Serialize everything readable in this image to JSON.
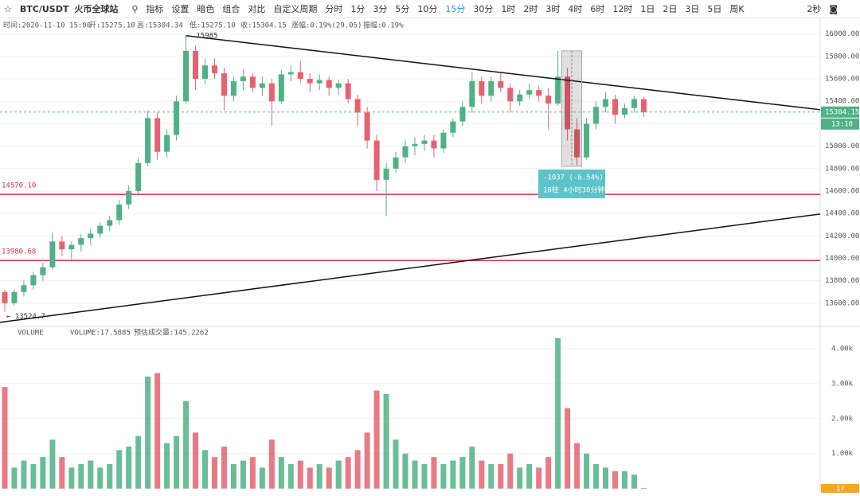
{
  "toolbar": {
    "symbol": "BTC/USDT",
    "exchange": "火币全球站",
    "tools": [
      "指标",
      "设置",
      "暗色",
      "组合",
      "对比",
      "自定义周期"
    ],
    "periods": [
      "分时",
      "1分",
      "3分",
      "5分",
      "10分",
      "15分",
      "30分",
      "1时",
      "2时",
      "3时",
      "4时",
      "6时",
      "12时",
      "1日",
      "2日",
      "3日",
      "5日",
      "周K"
    ],
    "active_period": 5,
    "refresh": "2秒"
  },
  "info": [
    "时间:2020-11-10 15:00",
    "开:15275.10",
    "高:15304.34",
    "低:15275.10",
    "收:15304.15",
    "涨幅:0.19%(29.05)",
    "振幅:0.19%"
  ],
  "chart_data": [
    {
      "type": "candlestick",
      "xlim": [
        -0.5,
        85.5
      ],
      "ylim": [
        13400,
        16140
      ],
      "yticks": [
        {
          "value": 13600,
          "label": "13600.00"
        },
        {
          "value": 13800,
          "label": "13800.00"
        },
        {
          "value": 14000,
          "label": "14000.00"
        },
        {
          "value": 14200,
          "label": "14200.00"
        },
        {
          "value": 14400,
          "label": "14400.00"
        },
        {
          "value": 14600,
          "label": "14600.00"
        },
        {
          "value": 14800,
          "label": "14800.00"
        },
        {
          "value": 15000,
          "label": "15000.00"
        },
        {
          "value": 15200,
          "label": "15200.00"
        },
        {
          "value": 15400,
          "label": "15400.00"
        },
        {
          "value": 15600,
          "label": "15600.00"
        },
        {
          "value": 15800,
          "label": "15800.00"
        },
        {
          "value": 16000,
          "label": "16000.00"
        }
      ],
      "grid": true,
      "up_color": "#4fb185",
      "down_color": "#e5626e",
      "open": [
        13700,
        13600,
        13700,
        13760,
        13850,
        13920,
        14150,
        14080,
        14120,
        14180,
        14220,
        14290,
        14340,
        14480,
        14600,
        14850,
        15250,
        14950,
        15100,
        15400,
        15850,
        15600,
        15720,
        15650,
        15450,
        15580,
        15620,
        15520,
        15560,
        15400,
        15640,
        15660,
        15600,
        15560,
        15590,
        15520,
        15560,
        15420,
        15300,
        15050,
        14700,
        14800,
        14900,
        15000,
        15020,
        15050,
        14980,
        15120,
        15220,
        15350,
        15580,
        15450,
        15580,
        15520,
        15400,
        15460,
        15500,
        15450,
        15380,
        15620,
        15150,
        14900,
        15200,
        15350,
        15420,
        15280,
        15340,
        15420
      ],
      "high": [
        13720,
        13720,
        13800,
        13880,
        13960,
        14230,
        14200,
        14150,
        14220,
        14260,
        14320,
        14380,
        14520,
        14650,
        14900,
        15320,
        15300,
        15150,
        15450,
        15985,
        15900,
        15780,
        15780,
        15700,
        15620,
        15680,
        15650,
        15620,
        15600,
        15680,
        15720,
        15760,
        15650,
        15640,
        15620,
        15590,
        15600,
        15460,
        15350,
        15100,
        14850,
        14950,
        15050,
        15080,
        15100,
        15100,
        15150,
        15250,
        15400,
        15660,
        15620,
        15620,
        15650,
        15560,
        15500,
        15560,
        15540,
        15520,
        15850,
        15700,
        15250,
        15250,
        15400,
        15480,
        15460,
        15380,
        15450,
        15440
      ],
      "low": [
        13524.7,
        13580,
        13660,
        13720,
        13800,
        13900,
        14020,
        13990,
        14060,
        14120,
        14180,
        14240,
        14300,
        14440,
        14560,
        14820,
        14880,
        14900,
        15050,
        15380,
        15500,
        15550,
        15600,
        15320,
        15400,
        15500,
        15480,
        15450,
        15180,
        15380,
        15580,
        15560,
        15480,
        15500,
        15450,
        15460,
        15380,
        15180,
        14980,
        14600,
        14380,
        14760,
        14850,
        14920,
        14960,
        14900,
        14940,
        15080,
        15180,
        15300,
        15380,
        15400,
        15480,
        15300,
        15360,
        15420,
        15400,
        15150,
        15360,
        15050,
        14830,
        14880,
        15150,
        15300,
        15200,
        15250,
        15300,
        15260
      ],
      "close": [
        13600,
        13700,
        13760,
        13850,
        13920,
        14150,
        14080,
        14120,
        14180,
        14220,
        14290,
        14340,
        14480,
        14600,
        14850,
        15250,
        14950,
        15100,
        15400,
        15850,
        15600,
        15720,
        15650,
        15450,
        15580,
        15620,
        15520,
        15560,
        15400,
        15640,
        15660,
        15600,
        15560,
        15590,
        15520,
        15560,
        15420,
        15300,
        15050,
        14700,
        14800,
        14900,
        15000,
        15020,
        15050,
        14980,
        15120,
        15220,
        15350,
        15580,
        15450,
        15580,
        15520,
        15400,
        15460,
        15500,
        15450,
        15380,
        15620,
        15150,
        14900,
        15200,
        15350,
        15420,
        15280,
        15340,
        15420,
        15304.15
      ],
      "hlines": [
        {
          "value": 14570.1,
          "label": "14570.10",
          "color": "#d4303d"
        },
        {
          "value": 13980.68,
          "label": "13980.68",
          "color": "#d4303d"
        }
      ],
      "trendlines": [
        {
          "x": [
            19,
            85.5
          ],
          "y": [
            15985,
            15325
          ]
        },
        {
          "x": [
            -0.5,
            85.5
          ],
          "y": [
            13429,
            14395
          ]
        }
      ],
      "annotations": [
        {
          "text": "← 15985",
          "x": 19,
          "y": 15985
        },
        {
          "text": "← 13524.7",
          "x": 0,
          "y": 13524.7
        }
      ],
      "measure": {
        "x": [
          58.4,
          60.5
        ],
        "y": [
          14820,
          15850
        ],
        "lines": [
          "-1037 (-6.54%)",
          "18柱 4小时30分钟"
        ]
      },
      "last_price": 15304.15,
      "countdown": "13:10"
    },
    {
      "type": "bar",
      "xlim": [
        -0.5,
        85.5
      ],
      "ylim": [
        -120,
        4610
      ],
      "legend": [
        "VOLUME",
        "VOLUME:17.5885",
        "预估成交量:145.2262"
      ],
      "yticks": [
        {
          "value": 1000,
          "label": "1.00k"
        },
        {
          "value": 2000,
          "label": "2.00k"
        },
        {
          "value": 3000,
          "label": "3.00k"
        },
        {
          "value": 4000,
          "label": "4.00k"
        }
      ],
      "grid": true,
      "values": [
        2900,
        600,
        800,
        700,
        900,
        1400,
        900,
        600,
        700,
        800,
        600,
        700,
        1100,
        1200,
        1500,
        3200,
        3300,
        1300,
        1500,
        2500,
        1600,
        1100,
        900,
        1200,
        700,
        800,
        900,
        600,
        1400,
        900,
        700,
        800,
        600,
        700,
        600,
        800,
        900,
        1100,
        1600,
        2800,
        2700,
        1400,
        1000,
        800,
        700,
        900,
        700,
        800,
        900,
        1200,
        800,
        700,
        700,
        1000,
        600,
        700,
        600,
        900,
        4300,
        2300,
        1300,
        1000,
        700,
        600,
        500,
        500,
        400,
        17
      ],
      "current": 17
    }
  ]
}
